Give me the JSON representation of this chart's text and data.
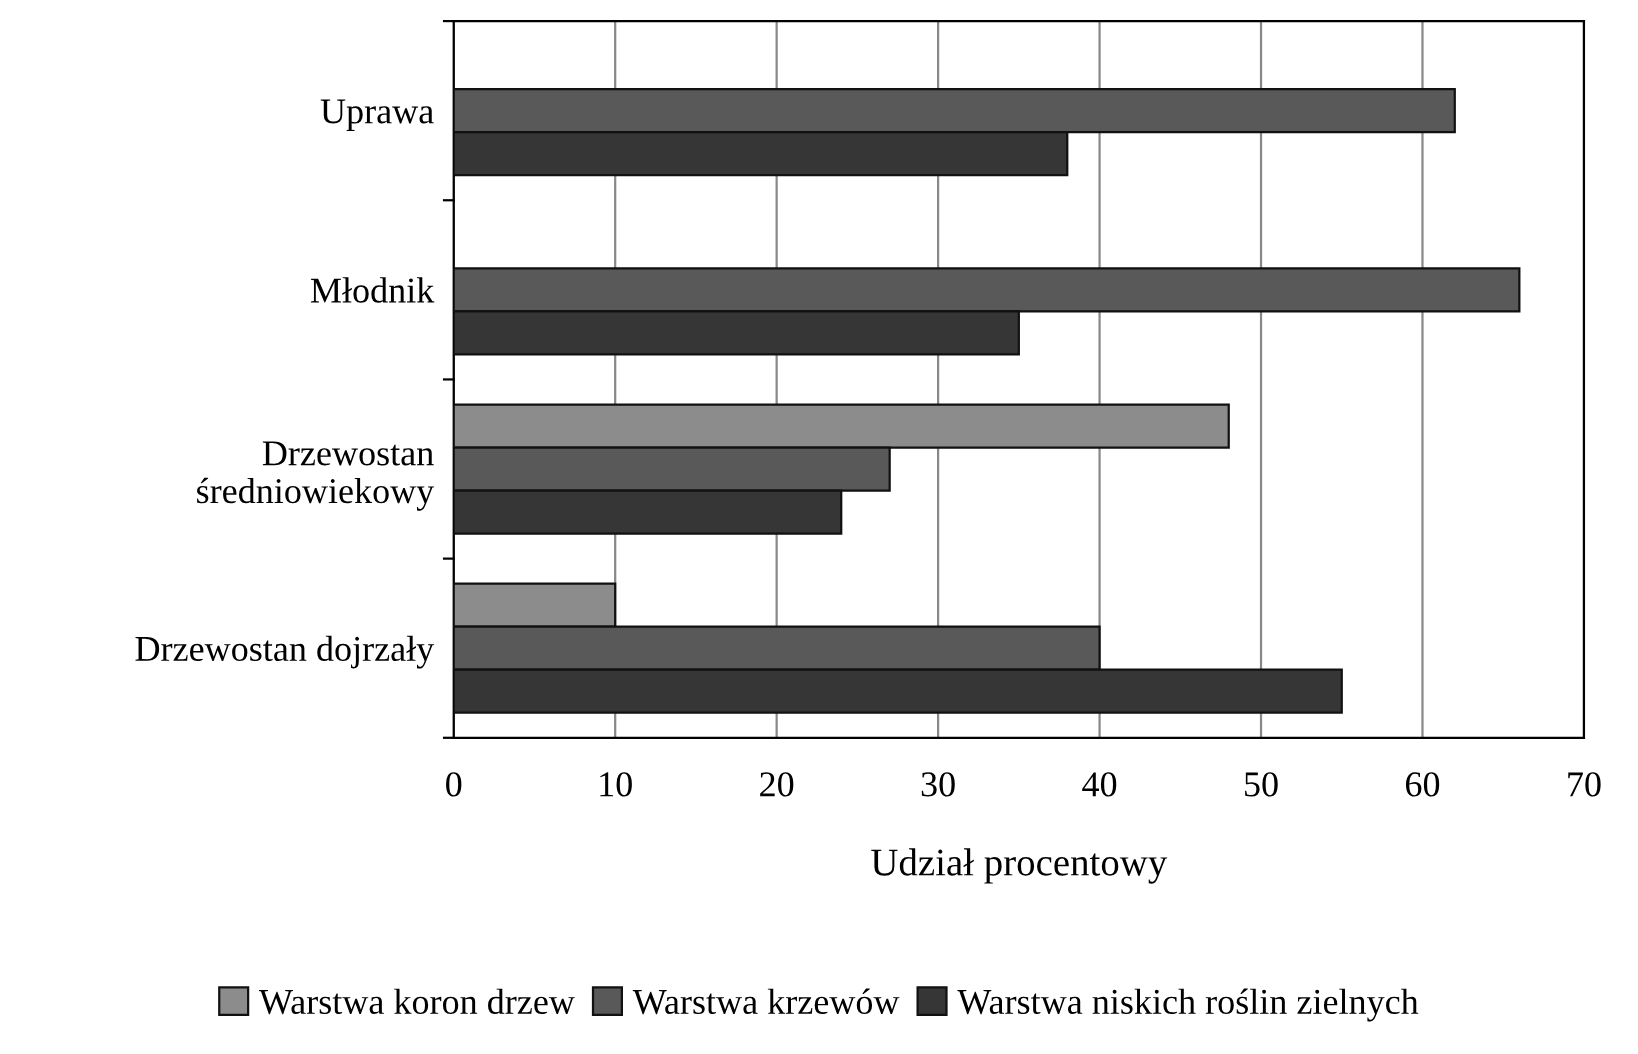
{
  "chart_data": {
    "type": "bar",
    "orientation": "horizontal",
    "xlabel": "Udział procentowy",
    "categories": [
      "Uprawa",
      "Młodnik",
      "Drzewostan\nśredniowiekowy",
      "Drzewostan dojrzały"
    ],
    "series": [
      {
        "name": "Warstwa koron drzew",
        "color": "#8c8c8c",
        "values": [
          null,
          null,
          48,
          10
        ]
      },
      {
        "name": "Warstwa krzewów",
        "color": "#595959",
        "values": [
          62,
          66,
          27,
          40
        ]
      },
      {
        "name": "Warstwa niskich roślin zielnych",
        "color": "#363636",
        "values": [
          38,
          35,
          24,
          55
        ]
      }
    ],
    "xlim": [
      0,
      70
    ],
    "xticks": [
      0,
      10,
      20,
      30,
      40,
      50,
      60,
      70
    ],
    "grid": "x",
    "legend": "bottom"
  }
}
